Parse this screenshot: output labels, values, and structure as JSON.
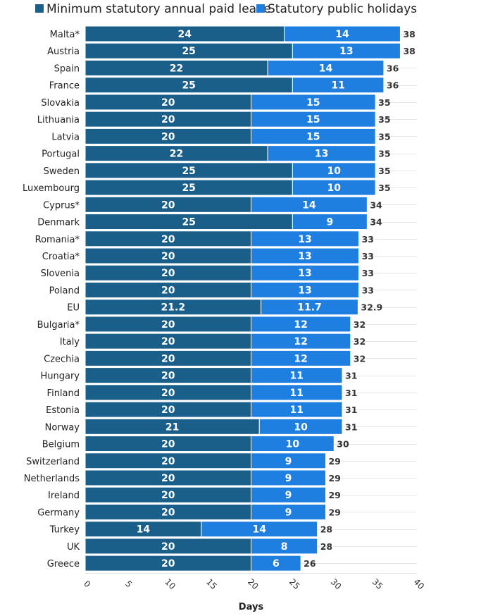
{
  "chart_data": {
    "type": "bar",
    "orientation": "horizontal",
    "stacked": true,
    "title": "",
    "xlabel": "Days",
    "ylabel": "",
    "xlim": [
      0,
      40
    ],
    "xticks": [
      0,
      5,
      10,
      15,
      20,
      25,
      30,
      35,
      40
    ],
    "grid": true,
    "legend_position": "top",
    "categories": [
      "Malta*",
      "Austria",
      "Spain",
      "France",
      "Slovakia",
      "Lithuania",
      "Latvia",
      "Portugal",
      "Sweden",
      "Luxembourg",
      "Cyprus*",
      "Denmark",
      "Romania*",
      "Croatia*",
      "Slovenia",
      "Poland",
      "EU",
      "Bulgaria*",
      "Italy",
      "Czechia",
      "Hungary",
      "Finland",
      "Estonia",
      "Norway",
      "Belgium",
      "Switzerland",
      "Netherlands",
      "Ireland",
      "Germany",
      "Turkey",
      "UK",
      "Greece"
    ],
    "series": [
      {
        "name": "Minimum statutory annual paid leave",
        "color": "#1a5e8a",
        "values": [
          24,
          25,
          22,
          25,
          20,
          20,
          20,
          22,
          25,
          25,
          20,
          25,
          20,
          20,
          20,
          20,
          21.2,
          20,
          20,
          20,
          20,
          20,
          20,
          21,
          20,
          20,
          20,
          20,
          20,
          14,
          20,
          20
        ]
      },
      {
        "name": "Statutory public holidays",
        "color": "#1f7fe0",
        "values": [
          14,
          13,
          14,
          11,
          15,
          15,
          15,
          13,
          10,
          10,
          14,
          9,
          13,
          13,
          13,
          13,
          11.7,
          12,
          12,
          12,
          11,
          11,
          11,
          10,
          10,
          9,
          9,
          9,
          9,
          14,
          8,
          6
        ]
      }
    ],
    "totals": [
      38,
      38,
      36,
      36,
      35,
      35,
      35,
      35,
      35,
      35,
      34,
      34,
      33,
      33,
      33,
      33,
      32.9,
      32,
      32,
      32,
      31,
      31,
      31,
      31,
      30,
      29,
      29,
      29,
      29,
      28,
      28,
      26
    ]
  }
}
